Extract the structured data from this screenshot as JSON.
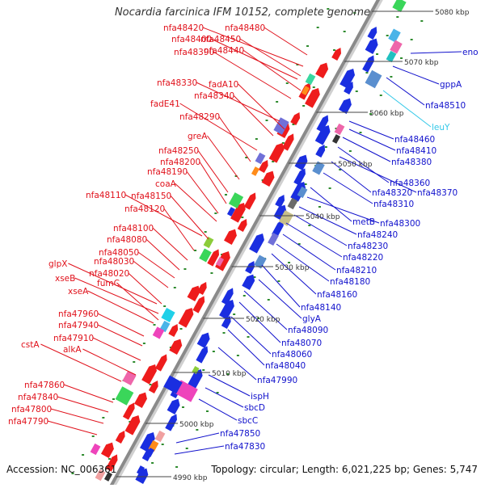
{
  "title": "Nocardia farcinica IFM 10152, complete genome",
  "footer": {
    "accession": "Accession: NC_006361",
    "summary": "Topology: circular; Length: 6,021,225 bp; Genes: 5,747"
  },
  "colors": {
    "axis": "#8a8a8a",
    "left_label": "#e0101a",
    "right_label": "#1010cc",
    "highlight_label": "#33c8e8",
    "forward_gene": "#ee1c1c",
    "reverse_gene": "#1a2ee0"
  },
  "ticks": [
    "4990 kbp",
    "5000 kbp",
    "5010 kbp",
    "5020 kbp",
    "5030 kbp",
    "5040 kbp",
    "5050 kbp",
    "5060 kbp",
    "5070 kbp",
    "5080 kbp"
  ],
  "left_labels": [
    "nfa48480",
    "nfa48420",
    "nfa48450",
    "nfa48400",
    "nfa48440",
    "nfa48390",
    "nfa48330",
    "fadA10",
    "nfa48340",
    "fadE41",
    "nfa48290",
    "greA",
    "nfa48250",
    "nfa48200",
    "nfa48190",
    "coaA",
    "nfa48110",
    "nfa48150",
    "nfa48120",
    "nfa48100",
    "nfa48080",
    "nfa48050",
    "glpX",
    "nfa48030",
    "xseB",
    "nfa48020",
    "fumC",
    "xseA",
    "nfa47960",
    "nfa47940",
    "nfa47910",
    "cstA",
    "alkA",
    "nfa47860",
    "nfa47840",
    "nfa47800",
    "nfa47790"
  ],
  "right_labels": [
    "eno",
    "gppA",
    "nfa48510",
    "leuY",
    "nfa48460",
    "nfa48410",
    "nfa48380",
    "nfa48360",
    "nfa48370",
    "nfa48320",
    "nfa48310",
    "metB",
    "nfa48300",
    "nfa48240",
    "nfa48230",
    "nfa48220",
    "nfa48210",
    "nfa48180",
    "nfa48160",
    "nfa48140",
    "glyA",
    "nfa48090",
    "nfa48070",
    "nfa48060",
    "nfa48040",
    "nfa47990",
    "ispH",
    "sbcD",
    "sbcC",
    "nfa47850",
    "nfa47830"
  ],
  "highlight_right": "leuY"
}
